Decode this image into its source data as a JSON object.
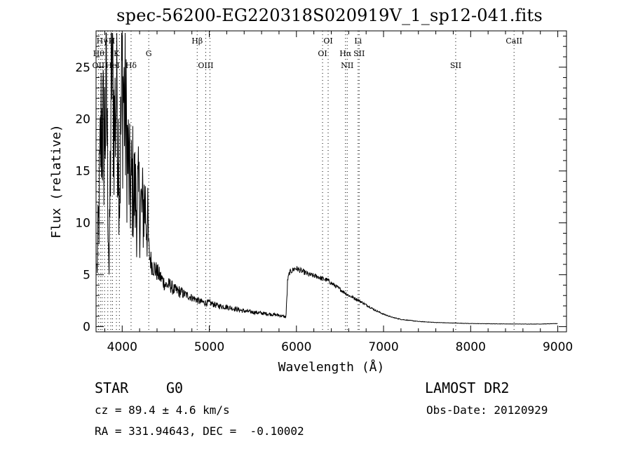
{
  "title": "spec-56200-EG220318S020919V_1_sp12-041.fits",
  "info": {
    "class": "STAR",
    "subclass": "G0",
    "survey": "LAMOST DR2",
    "cz": "cz = 89.4 ± 4.6 km/s",
    "obs_date": "Obs-Date: 20120929",
    "radec": "RA = 331.94643, DEC =  -0.10002"
  },
  "chart_data": {
    "type": "line",
    "xlabel": "Wavelength (Å)",
    "ylabel": "Flux (relative)",
    "xlim": [
      3700,
      9100
    ],
    "ylim": [
      -0.5,
      28.5
    ],
    "xticks": [
      4000,
      5000,
      6000,
      7000,
      8000,
      9000
    ],
    "yticks": [
      0,
      5,
      10,
      15,
      20,
      25
    ],
    "series": [
      {
        "x": [
          3700,
          3730,
          3760,
          3790,
          3820,
          3850,
          3880,
          3910,
          3940,
          3970,
          4000,
          4030,
          4060,
          4090,
          4120,
          4160,
          4200,
          4230,
          4260,
          4290,
          4310,
          4340,
          4380,
          4420,
          4460,
          4500,
          4550,
          4600,
          4650,
          4700,
          4750,
          4800,
          4850,
          4900,
          4950,
          5000,
          5100,
          5200,
          5300,
          5400,
          5500,
          5600,
          5700,
          5800,
          5850,
          5880,
          5900,
          5920,
          5950,
          5980,
          6000,
          6050,
          6100,
          6150,
          6200,
          6250,
          6300,
          6350,
          6400,
          6450,
          6500,
          6550,
          6600,
          6650,
          6700,
          6800,
          6900,
          7000,
          7100,
          7200,
          7300,
          7400,
          7500,
          7600,
          7800,
          8000,
          8200,
          8400,
          8600,
          8800,
          9000
        ],
        "y": [
          3,
          10,
          20,
          18,
          22,
          5,
          27,
          19,
          24,
          13,
          24,
          21,
          17,
          13,
          14,
          12,
          12,
          11,
          12,
          10,
          7,
          6,
          5.5,
          5,
          4.5,
          4,
          4,
          3.5,
          3.4,
          3.2,
          3,
          2.8,
          2.6,
          2.4,
          2.3,
          2.3,
          2,
          1.9,
          1.7,
          1.5,
          1.4,
          1.3,
          1.2,
          1.1,
          1.0,
          0.9,
          4.5,
          5.2,
          5.4,
          5.6,
          5.6,
          5.4,
          5.2,
          5.0,
          4.9,
          4.8,
          4.6,
          4.5,
          4.2,
          3.9,
          3.6,
          3.3,
          3.0,
          2.8,
          2.6,
          2.1,
          1.6,
          1.2,
          0.9,
          0.7,
          0.6,
          0.5,
          0.45,
          0.4,
          0.35,
          0.3,
          0.28,
          0.26,
          0.25,
          0.25,
          0.3
        ]
      }
    ],
    "lines": [
      {
        "label": "Hγ",
        "wave": 3770,
        "row": 0
      },
      {
        "label": "H",
        "wave": 3880,
        "row": 0
      },
      {
        "label": "Hβ",
        "wave": 4861,
        "row": 0
      },
      {
        "label": "OI",
        "wave": 6364,
        "row": 0
      },
      {
        "label": "Li",
        "wave": 6708,
        "row": 0
      },
      {
        "label": "CaII",
        "wave": 8498,
        "row": 0
      },
      {
        "label": "Hθ",
        "wave": 3730,
        "row": 1
      },
      {
        "label": "K",
        "wave": 3934,
        "row": 1
      },
      {
        "label": "G",
        "wave": 4305,
        "row": 1
      },
      {
        "label": "OI",
        "wave": 6300,
        "row": 1
      },
      {
        "label": "Hα",
        "wave": 6563,
        "row": 1
      },
      {
        "label": "SII",
        "wave": 6720,
        "row": 1
      },
      {
        "label": "OII",
        "wave": 3727,
        "row": 2
      },
      {
        "label": "HeI",
        "wave": 3889,
        "row": 2
      },
      {
        "label": "Hδ",
        "wave": 4102,
        "row": 2
      },
      {
        "label": "OIII",
        "wave": 4959,
        "row": 2
      },
      {
        "label": "NII",
        "wave": 6583,
        "row": 2
      },
      {
        "label": "SII",
        "wave": 7828,
        "row": 2
      }
    ],
    "line_marks": [
      3727,
      3750,
      3770,
      3798,
      3835,
      3869,
      3889,
      3934,
      3968,
      4102,
      4305,
      4861,
      4959,
      5007,
      6300,
      6364,
      6563,
      6583,
      6708,
      6720,
      7828,
      8498
    ]
  }
}
